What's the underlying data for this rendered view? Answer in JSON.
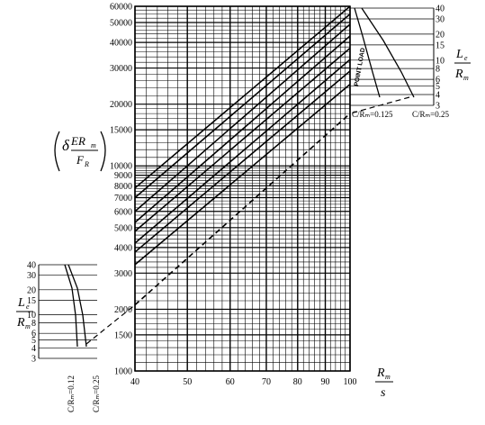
{
  "chart_data": {
    "type": "line",
    "x_axis": {
      "label": "R_m / s",
      "scale": "log",
      "range": [
        40,
        100
      ],
      "tick_labels": [
        "40",
        "50",
        "60",
        "70",
        "80",
        "90",
        "100"
      ]
    },
    "y_axis": {
      "label": "(δ E R_m / F_R)",
      "scale": "log",
      "range": [
        1000,
        60000
      ],
      "tick_labels": [
        "1000",
        "1500",
        "2000",
        "3000",
        "4000",
        "5000",
        "6000",
        "7000",
        "8000",
        "9000",
        "10000",
        "15000",
        "20000",
        "30000",
        "40000",
        "50000",
        "60000"
      ]
    },
    "grid": true,
    "series_note": "family of parallel solid lines (C/R_m = 0.125) plus one dashed line (C/R_m = 0.25)",
    "series": [
      {
        "style": "solid",
        "values_at_x40": 7800,
        "values_at_x100": 60000
      },
      {
        "style": "solid",
        "values_at_x40": 7000,
        "values_at_x100": 55000
      },
      {
        "style": "solid",
        "values_at_x40": 6000,
        "values_at_x100": 49000
      },
      {
        "style": "solid",
        "values_at_x40": 5300,
        "values_at_x100": 43000
      },
      {
        "style": "solid",
        "values_at_x40": 4800,
        "values_at_x100": 37500
      },
      {
        "style": "solid",
        "values_at_x40": 4200,
        "values_at_x100": 33000
      },
      {
        "style": "solid",
        "values_at_x40": 3800,
        "values_at_x100": 29000
      },
      {
        "style": "solid",
        "values_at_x40": 3300,
        "values_at_x100": 25000
      },
      {
        "style": "dashed",
        "values_at_x40": 2100,
        "values_at_x100": 18000
      }
    ],
    "annotations": {
      "point_load": "POINT LOAD",
      "c_ratio_0125": "C/Rₘ=0.125",
      "c_ratio_025": "C/Rₘ=0.25",
      "c_ratio_012_rot": "C/Rₘ=0.12",
      "c_ratio_025_rot": "C/Rₘ=0.25"
    },
    "side_scale": {
      "label_num": "L_e",
      "label_den": "R_m",
      "tick_labels": [
        "40",
        "30",
        "20",
        "15",
        "10",
        "8",
        "6",
        "5",
        "4",
        "3"
      ],
      "tick_values": [
        40,
        30,
        20,
        15,
        10,
        8,
        6,
        5,
        4,
        3
      ]
    }
  },
  "labels": {
    "ylabel_main": "ER",
    "ylabel_sub": "m",
    "ylabel_den": "F",
    "ylabel_den_sub": "R",
    "delta": "δ",
    "xlabel_num": "R",
    "xlabel_num_sub": "m",
    "xlabel_den": "s",
    "le_num": "L",
    "le_num_sub": "e",
    "le_den": "R",
    "le_den_sub": "m"
  }
}
